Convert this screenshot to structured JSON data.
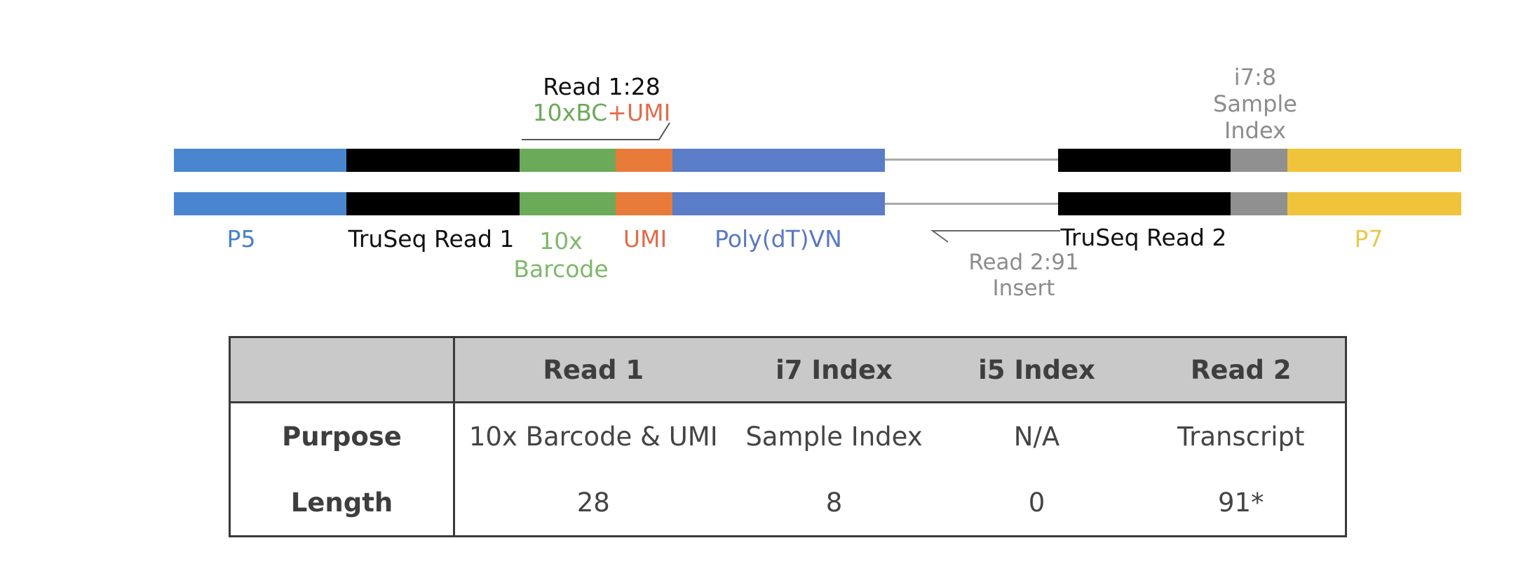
{
  "diagram": {
    "read1_annotation": {
      "title": "Read 1:28",
      "bc_text": "10xBC",
      "plus_text": "+",
      "umi_text": "UMI"
    },
    "i7_annotation": {
      "line1": "i7:8",
      "line2": "Sample",
      "line3": "Index"
    },
    "read2_annotation": {
      "line1": "Read 2:91",
      "line2": "Insert"
    },
    "segment_labels": {
      "p5": "P5",
      "truseq_read1": "TruSeq Read 1",
      "barcode_line1": "10x",
      "barcode_line2": "Barcode",
      "umi": "UMI",
      "polydt": "Poly(dT)VN",
      "truseq_read2": "TruSeq Read 2",
      "p7": "P7"
    },
    "colors": {
      "p5": "#4a86d0",
      "truseq": "#000000",
      "barcode": "#6aaa58",
      "umi": "#e97b3a",
      "polydt": "#5b7cc6",
      "index": "#909090",
      "p7": "#f0c43a",
      "label_p5": "#4a80c8",
      "label_barcode": "#7fb86a",
      "label_umi": "#e06c4c",
      "label_polydt": "#5b78c0",
      "label_p7": "#e8c94a",
      "label_gray": "#8c8c8c"
    }
  },
  "table": {
    "headers": [
      "",
      "Read 1",
      "i7 Index",
      "i5 Index",
      "Read 2"
    ],
    "rows": [
      {
        "label": "Purpose",
        "cells": [
          "10x Barcode & UMI",
          "Sample Index",
          "N/A",
          "Transcript"
        ]
      },
      {
        "label": "Length",
        "cells": [
          "28",
          "8",
          "0",
          "91*"
        ]
      }
    ]
  }
}
